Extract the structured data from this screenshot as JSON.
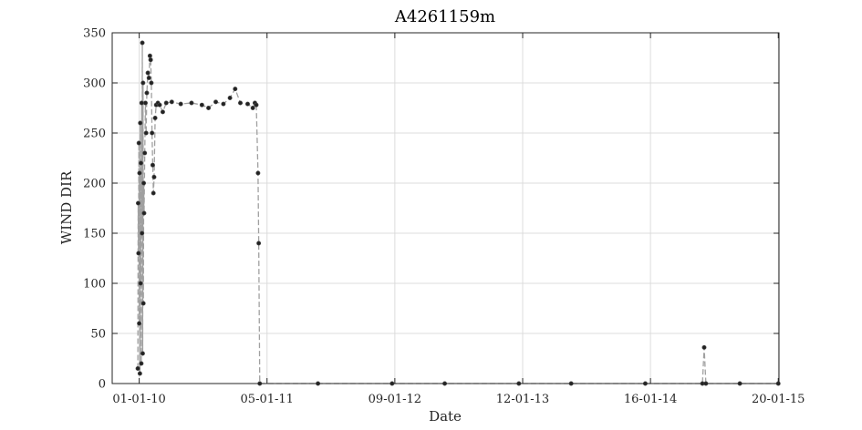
{
  "chart_data": {
    "type": "line",
    "title": "A4261159m",
    "xlabel": "Date",
    "ylabel": "WIND DIR",
    "x_ticks": [
      "01-01-10",
      "05-01-11",
      "09-01-12",
      "12-01-13",
      "16-01-14",
      "20-01-15"
    ],
    "x_tick_dates": [
      "2010-01-01",
      "2011-01-05",
      "2012-01-09",
      "2013-01-12",
      "2014-01-16",
      "2015-01-20"
    ],
    "xlim": [
      "2009-10-15",
      "2015-01-22"
    ],
    "ylim": [
      0,
      350
    ],
    "y_ticks": [
      0,
      50,
      100,
      150,
      200,
      250,
      300,
      350
    ],
    "grid": true,
    "series": [
      {
        "color_line": "#a0a0a0",
        "color_marker": "#222222",
        "line_style": "dashed",
        "points": [
          [
            "2009-12-28",
            15
          ],
          [
            "2009-12-29",
            180
          ],
          [
            "2009-12-30",
            130
          ],
          [
            "2009-12-31",
            240
          ],
          [
            "2010-01-01",
            60
          ],
          [
            "2010-01-02",
            210
          ],
          [
            "2010-01-03",
            10
          ],
          [
            "2010-01-04",
            260
          ],
          [
            "2010-01-05",
            100
          ],
          [
            "2010-01-06",
            220
          ],
          [
            "2010-01-07",
            20
          ],
          [
            "2010-01-08",
            280
          ],
          [
            "2010-01-09",
            150
          ],
          [
            "2010-01-10",
            340
          ],
          [
            "2010-01-11",
            30
          ],
          [
            "2010-01-12",
            300
          ],
          [
            "2010-01-13",
            80
          ],
          [
            "2010-01-14",
            200
          ],
          [
            "2010-01-15",
            170
          ],
          [
            "2010-01-17",
            230
          ],
          [
            "2010-01-19",
            280
          ],
          [
            "2010-01-21",
            250
          ],
          [
            "2010-01-23",
            290
          ],
          [
            "2010-01-26",
            310
          ],
          [
            "2010-01-29",
            305
          ],
          [
            "2010-02-01",
            327
          ],
          [
            "2010-02-03",
            323
          ],
          [
            "2010-02-05",
            300
          ],
          [
            "2010-02-07",
            250
          ],
          [
            "2010-02-09",
            218
          ],
          [
            "2010-02-11",
            190
          ],
          [
            "2010-02-13",
            206
          ],
          [
            "2010-02-16",
            265
          ],
          [
            "2010-02-19",
            278
          ],
          [
            "2010-02-24",
            280
          ],
          [
            "2010-03-01",
            278
          ],
          [
            "2010-03-10",
            271
          ],
          [
            "2010-03-20",
            280
          ],
          [
            "2010-04-05",
            281
          ],
          [
            "2010-05-01",
            279
          ],
          [
            "2010-06-01",
            280
          ],
          [
            "2010-07-01",
            278
          ],
          [
            "2010-07-20",
            275
          ],
          [
            "2010-08-10",
            281
          ],
          [
            "2010-09-01",
            279
          ],
          [
            "2010-09-20",
            285
          ],
          [
            "2010-10-05",
            294
          ],
          [
            "2010-10-20",
            280
          ],
          [
            "2010-11-10",
            279
          ],
          [
            "2010-11-25",
            275
          ],
          [
            "2010-12-01",
            280
          ],
          [
            "2010-12-05",
            278
          ],
          [
            "2010-12-10",
            210
          ],
          [
            "2010-12-12",
            140
          ],
          [
            "2010-12-15",
            0
          ],
          [
            "2011-06-01",
            0
          ],
          [
            "2012-01-01",
            0
          ],
          [
            "2012-06-01",
            0
          ],
          [
            "2013-01-01",
            0
          ],
          [
            "2013-06-01",
            0
          ],
          [
            "2014-01-01",
            0
          ],
          [
            "2014-06-15",
            0
          ],
          [
            "2014-06-20",
            36
          ],
          [
            "2014-06-25",
            0
          ],
          [
            "2014-10-01",
            0
          ],
          [
            "2015-01-20",
            0
          ]
        ]
      }
    ]
  }
}
